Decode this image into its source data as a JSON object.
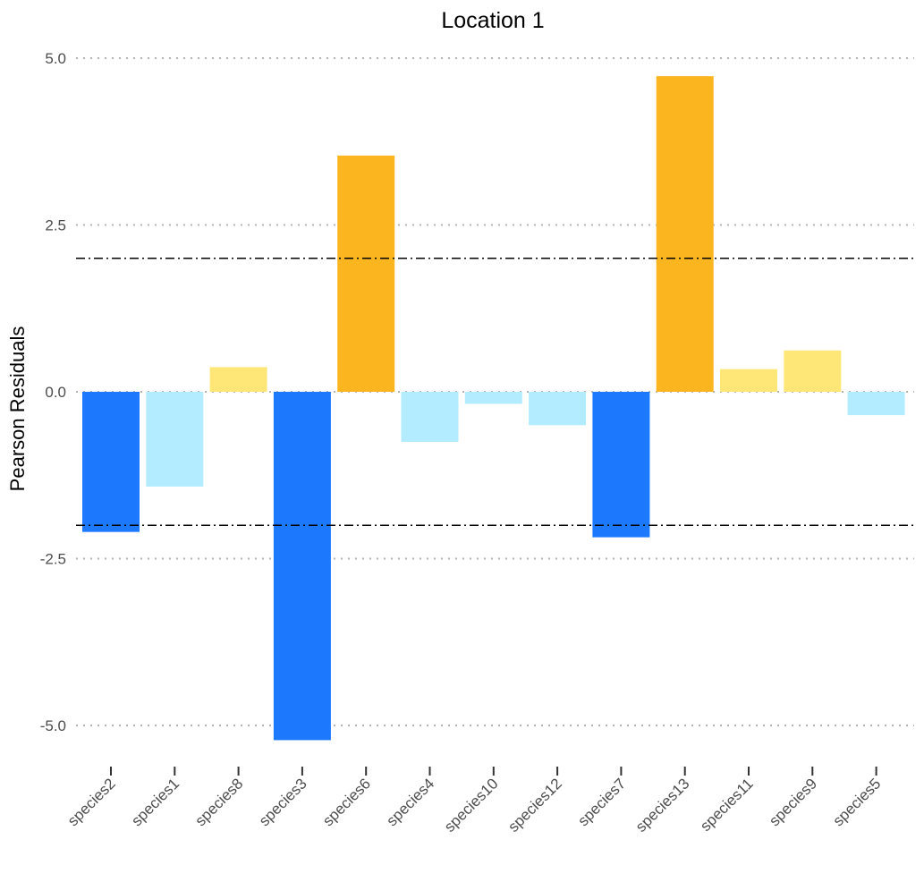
{
  "chart_data": {
    "type": "bar",
    "title": "Location 1",
    "xlabel": "",
    "ylabel": "Pearson Residuals",
    "ylim": [
      -5.4,
      5.3
    ],
    "yticks": [
      5.0,
      2.5,
      0.0,
      -2.5,
      -5.0
    ],
    "ytick_labels": [
      "5.0",
      "2.5",
      "0.0",
      "-2.5",
      "-5.0"
    ],
    "grid": "horizontal-dotted",
    "reference_lines": [
      2,
      -2
    ],
    "categories": [
      "species2",
      "species1",
      "species8",
      "species3",
      "species6",
      "species4",
      "species10",
      "species12",
      "species7",
      "species13",
      "species11",
      "species9",
      "species5"
    ],
    "values": [
      -2.1,
      -1.42,
      0.37,
      -5.22,
      3.54,
      -0.75,
      -0.18,
      -0.5,
      -2.18,
      4.73,
      0.34,
      0.62,
      -0.35
    ],
    "bar_colors": [
      "#1c79fe",
      "#b3ecfe",
      "#fee777",
      "#1c79fe",
      "#fbb51f",
      "#b3ecfe",
      "#b3ecfe",
      "#b3ecfe",
      "#1c79fe",
      "#fbb51f",
      "#fee777",
      "#fee777",
      "#b3ecfe"
    ]
  }
}
